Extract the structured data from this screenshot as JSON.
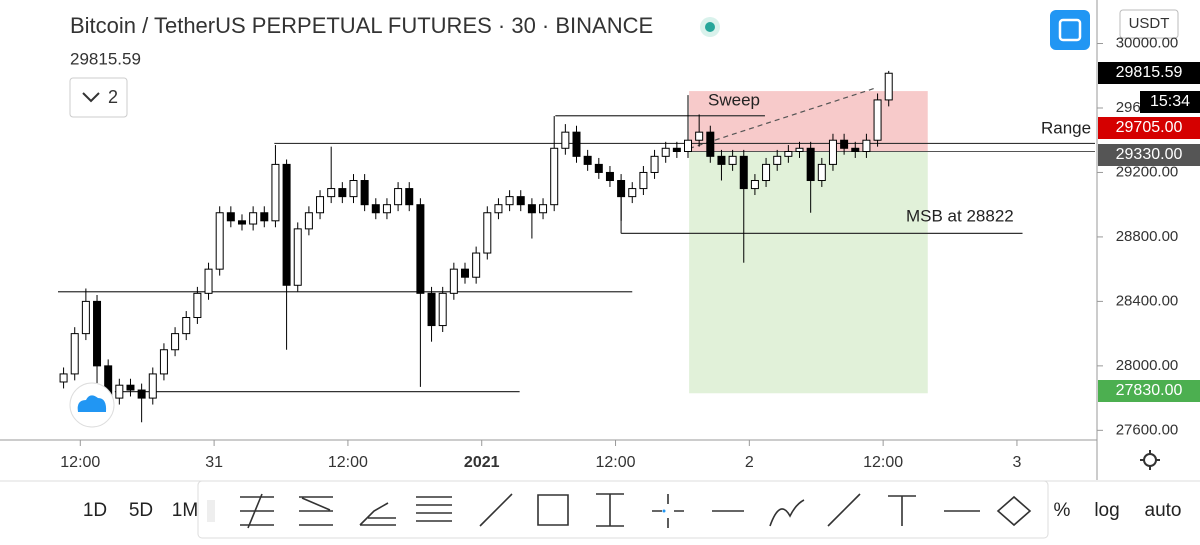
{
  "chart_data": {
    "type": "candlestick",
    "title": "Bitcoin / TetherUS PERPETUAL FUTURES · 30 · BINANCE",
    "last_price": "29815.59",
    "interval_count": "2",
    "currency": "USDT",
    "toolbar": {
      "left": [
        "1D",
        "5D",
        "1M"
      ],
      "right": [
        "%",
        "log",
        "auto"
      ]
    },
    "up_color": "#ffffff",
    "down_color": "#000000",
    "x": [
      -1.5,
      -0.5,
      0.5,
      1.5,
      2.5,
      3.5,
      4.5,
      5.5,
      6.5,
      7.5,
      8.5,
      9.5,
      10.5,
      11.5,
      12.5,
      13.5,
      14.5,
      15.5,
      16.5,
      17.5,
      18.5,
      19.5,
      20.5,
      21.5,
      22.5,
      23.5,
      24.5,
      25.5,
      26.5,
      27.5,
      28.5,
      29.5,
      30.5,
      31.5,
      32.5,
      33.5,
      34.5,
      35.5,
      36.5,
      37.5,
      38.5,
      39.5,
      40.5,
      41.5,
      42.5,
      43.5,
      44.5,
      45.5,
      46.5,
      47.5,
      48.5,
      49.5,
      50.5,
      51.5,
      52.5,
      53.5,
      54.5,
      55.5,
      56.5,
      57.5,
      58.5,
      59.5,
      60.5,
      61.5,
      62.5,
      63.5,
      64.5,
      65.5,
      66.5,
      67.5,
      68.5,
      69.5,
      70.5,
      71.5,
      72.5
    ],
    "open": [
      27900,
      27950,
      28200,
      28400,
      28000,
      27800,
      27880,
      27850,
      27800,
      27950,
      28100,
      28200,
      28300,
      28450,
      28600,
      28950,
      28900,
      28880,
      28950,
      28900,
      29250,
      28500,
      28850,
      28950,
      29050,
      29100,
      29050,
      29150,
      29000,
      28950,
      29000,
      29100,
      29000,
      28450,
      28250,
      28450,
      28600,
      28550,
      28700,
      28950,
      29000,
      29050,
      29000,
      28950,
      29000,
      29350,
      29450,
      29300,
      29250,
      29200,
      29150,
      29050,
      29100,
      29200,
      29300,
      29350,
      29330,
      29400,
      29450,
      29300,
      29250,
      29300,
      29100,
      29150,
      29250,
      29300,
      29330,
      29350,
      29150,
      29250,
      29400,
      29350,
      29330,
      29400,
      29650
    ],
    "high": [
      27990,
      28240,
      28480,
      28440,
      28040,
      27920,
      27920,
      27890,
      27990,
      28140,
      28240,
      28340,
      28490,
      28640,
      28990,
      28990,
      28940,
      28990,
      28990,
      29370,
      29280,
      28890,
      28990,
      29090,
      29360,
      29140,
      29190,
      29190,
      29040,
      29040,
      29140,
      29140,
      29040,
      28490,
      28490,
      28640,
      28640,
      28740,
      28990,
      29040,
      29090,
      29090,
      29040,
      29040,
      29550,
      29500,
      29490,
      29340,
      29290,
      29240,
      29190,
      29140,
      29240,
      29340,
      29390,
      29390,
      29680,
      29560,
      29490,
      29340,
      29340,
      29340,
      29190,
      29290,
      29340,
      29370,
      29390,
      29390,
      29290,
      29440,
      29440,
      29390,
      29440,
      29690,
      29830
    ],
    "low": [
      27860,
      27910,
      28160,
      27630,
      27760,
      27760,
      27810,
      27650,
      27760,
      27910,
      28060,
      28160,
      28260,
      28410,
      28560,
      28860,
      28840,
      28840,
      28860,
      28860,
      28100,
      28460,
      28810,
      28910,
      29010,
      29010,
      29010,
      28960,
      28910,
      28910,
      28960,
      28960,
      27870,
      28150,
      28210,
      28410,
      28510,
      28510,
      28660,
      28910,
      28960,
      28960,
      28790,
      28910,
      28960,
      29310,
      29260,
      29210,
      29160,
      29110,
      28900,
      29010,
      29060,
      29160,
      29260,
      29290,
      29290,
      29360,
      29260,
      29150,
      29210,
      28640,
      29060,
      29110,
      29210,
      29260,
      29290,
      28950,
      29110,
      29210,
      29310,
      29290,
      29290,
      29360,
      29610
    ],
    "close": [
      27950,
      28200,
      28400,
      28000,
      27800,
      27880,
      27850,
      27800,
      27950,
      28100,
      28200,
      28300,
      28450,
      28600,
      28950,
      28900,
      28880,
      28950,
      28900,
      29250,
      28500,
      28850,
      28950,
      29050,
      29100,
      29050,
      29150,
      29000,
      28950,
      29000,
      29100,
      29000,
      28450,
      28250,
      28450,
      28600,
      28550,
      28700,
      28950,
      29000,
      29050,
      29000,
      28950,
      29000,
      29350,
      29450,
      29300,
      29250,
      29200,
      29150,
      29050,
      29100,
      29200,
      29300,
      29350,
      29330,
      29400,
      29450,
      29300,
      29250,
      29300,
      29100,
      29150,
      29250,
      29300,
      29330,
      29350,
      29150,
      29250,
      29400,
      29350,
      29330,
      29400,
      29650,
      29815.59
    ],
    "xlim": [
      -2,
      91
    ],
    "ylim": [
      27540,
      30270
    ],
    "xticks": [
      {
        "value": 0,
        "label": "12:00"
      },
      {
        "value": 12,
        "label": "31"
      },
      {
        "value": 24,
        "label": "12:00"
      },
      {
        "value": 36,
        "label": "2021"
      },
      {
        "value": 48,
        "label": "12:00"
      },
      {
        "value": 60,
        "label": "2"
      },
      {
        "value": 72,
        "label": "12:00"
      },
      {
        "value": 84,
        "label": "3"
      }
    ],
    "yticks": [
      {
        "value": 27600,
        "label": "27600.00"
      },
      {
        "value": 28000,
        "label": "28000.00"
      },
      {
        "value": 28400,
        "label": "28400.00"
      },
      {
        "value": 28800,
        "label": "28800.00"
      },
      {
        "value": 29200,
        "label": "29200.00"
      },
      {
        "value": 29600,
        "label": "29600.00"
      },
      {
        "value": 30000,
        "label": "30000.00"
      }
    ],
    "lines": [
      {
        "price": 28460,
        "from": -2,
        "to": 49.5
      },
      {
        "price": 27840,
        "from": 3.1,
        "to": 39.4
      },
      {
        "price": 29380,
        "from": 17.4,
        "to": 91
      },
      {
        "price": 29552,
        "from": 42.6,
        "to": 61.4
      },
      {
        "price": 28822,
        "from": 48.5,
        "to": 84.5
      }
    ],
    "position": {
      "entry": 29330,
      "stop": 29705,
      "target": 27830,
      "from": 54.6,
      "to": 76
    },
    "annotations": [
      "Sweep",
      "MSB at 28822",
      "Range"
    ],
    "price_badges": [
      {
        "value": 29815.59,
        "label": "29815.59",
        "color": "#000000"
      },
      {
        "value": 29705,
        "label": "29705.00",
        "color": "#d50000"
      },
      {
        "value": 29330,
        "label": "29330.00",
        "color": "#555555"
      },
      {
        "value": 27830,
        "label": "27830.00",
        "color": "#4caf50"
      }
    ],
    "timer": "15:34"
  }
}
